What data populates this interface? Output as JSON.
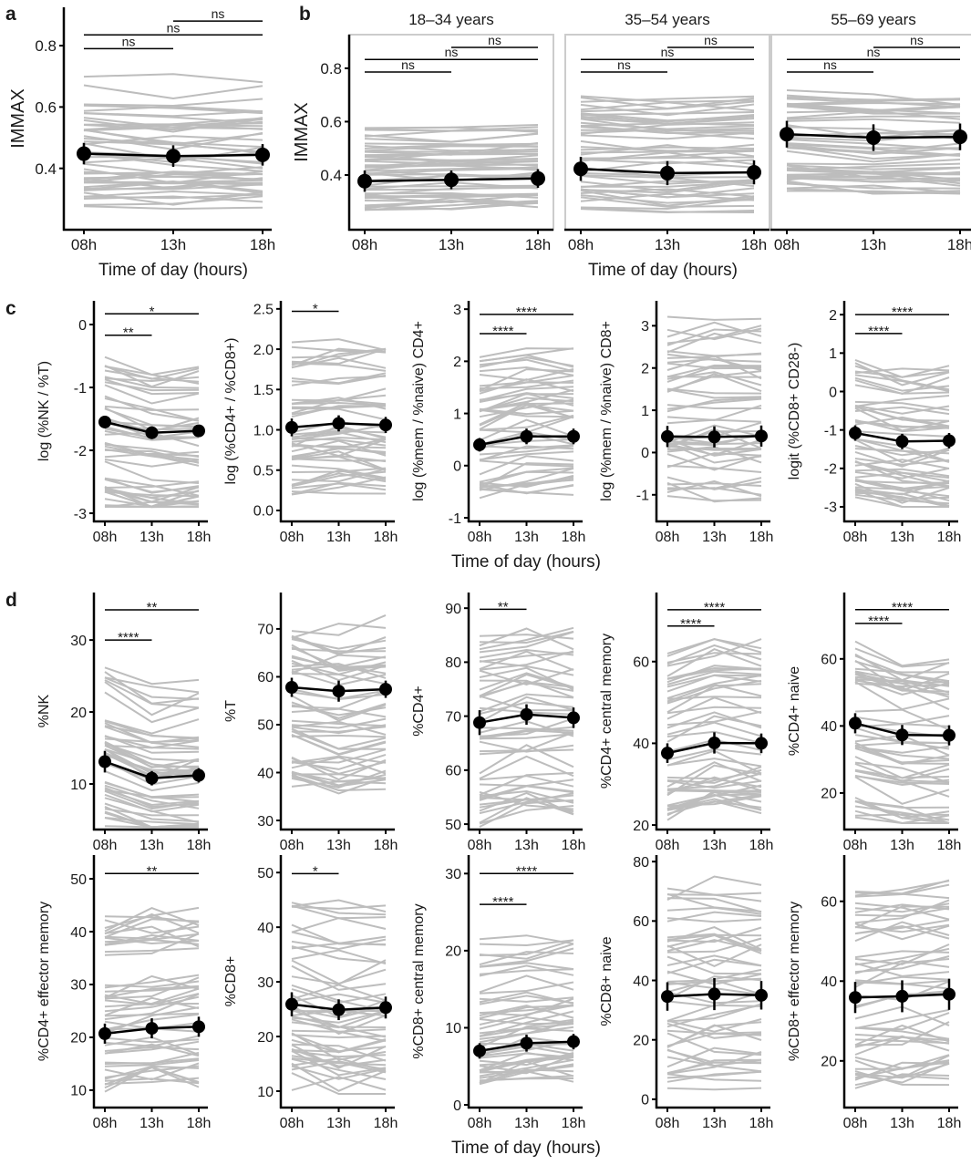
{
  "panel_letters": {
    "a": "a",
    "b": "b",
    "c": "c",
    "d": "d"
  },
  "xaxis_titles": {
    "a": "Time of day (hours)",
    "b": "Time of day (hours)",
    "c": "Time of day (hours)",
    "d": "Time of day (hours)"
  },
  "colors": {
    "mean": "#000000",
    "individual": "#bdbdbd",
    "facet_border": "#cccccc"
  },
  "chart_data": [
    {
      "id": "a",
      "type": "line",
      "ylabel": "IMMAX",
      "xticks": [
        "08h",
        "13h",
        "18h"
      ],
      "ylim": [
        0.2,
        0.925
      ],
      "yticks": [
        {
          "value": 0.4,
          "label": "0.4"
        },
        {
          "value": 0.6,
          "label": "0.6"
        },
        {
          "value": 0.8,
          "label": "0.8"
        }
      ],
      "mean": [
        0.448,
        0.44,
        0.444
      ],
      "err": [
        0.035,
        0.035,
        0.035
      ],
      "individual_range": [
        0.25,
        0.74
      ],
      "significance": [
        {
          "from": 0,
          "to": 1,
          "label": "ns",
          "y": 0.79
        },
        {
          "from": 0,
          "to": 2,
          "label": "ns",
          "y": 0.835
        },
        {
          "from": 1,
          "to": 2,
          "label": "ns",
          "y": 0.88
        }
      ]
    },
    {
      "id": "b1",
      "type": "line",
      "facet_title": "18–34 years",
      "ylabel": "IMMAX",
      "xticks": [
        "08h",
        "13h",
        "18h"
      ],
      "ylim": [
        0.195,
        0.926
      ],
      "yticks": [
        {
          "value": 0.4,
          "label": "0.4"
        },
        {
          "value": 0.6,
          "label": "0.6"
        },
        {
          "value": 0.8,
          "label": "0.8"
        }
      ],
      "mean": [
        0.377,
        0.382,
        0.387
      ],
      "err": [
        0.04,
        0.035,
        0.035
      ],
      "individual_range": [
        0.25,
        0.59
      ],
      "significance": [
        {
          "from": 0,
          "to": 1,
          "label": "ns",
          "y": 0.786
        },
        {
          "from": 0,
          "to": 2,
          "label": "ns",
          "y": 0.833
        },
        {
          "from": 1,
          "to": 2,
          "label": "ns",
          "y": 0.878
        }
      ]
    },
    {
      "id": "b2",
      "type": "line",
      "facet_title": "35–54 years",
      "xticks": [
        "08h",
        "13h",
        "18h"
      ],
      "ylim": [
        0.195,
        0.926
      ],
      "yticks": [],
      "mean": [
        0.423,
        0.407,
        0.41
      ],
      "err": [
        0.045,
        0.045,
        0.045
      ],
      "individual_range": [
        0.26,
        0.74
      ],
      "significance": [
        {
          "from": 0,
          "to": 1,
          "label": "ns",
          "y": 0.786
        },
        {
          "from": 0,
          "to": 2,
          "label": "ns",
          "y": 0.833
        },
        {
          "from": 1,
          "to": 2,
          "label": "ns",
          "y": 0.878
        }
      ]
    },
    {
      "id": "b3",
      "type": "line",
      "facet_title": "55–69 years",
      "xticks": [
        "08h",
        "13h",
        "18h"
      ],
      "ylim": [
        0.195,
        0.926
      ],
      "yticks": [],
      "mean": [
        0.553,
        0.54,
        0.543
      ],
      "err": [
        0.05,
        0.05,
        0.05
      ],
      "individual_range": [
        0.33,
        0.72
      ],
      "significance": [
        {
          "from": 0,
          "to": 1,
          "label": "ns",
          "y": 0.786
        },
        {
          "from": 0,
          "to": 2,
          "label": "ns",
          "y": 0.833
        },
        {
          "from": 1,
          "to": 2,
          "label": "ns",
          "y": 0.878
        }
      ]
    },
    {
      "id": "c1",
      "type": "line",
      "ylabel": "log (%NK / %T)",
      "xticks": [
        "08h",
        "13h",
        "18h"
      ],
      "ylim": [
        -3.13,
        0.377
      ],
      "yticks": [
        {
          "value": -3,
          "label": "-3"
        },
        {
          "value": -2,
          "label": "-2"
        },
        {
          "value": -1,
          "label": "-1"
        },
        {
          "value": 0,
          "label": "0"
        }
      ],
      "mean": [
        -1.55,
        -1.72,
        -1.69
      ],
      "err": [
        0.1,
        0.1,
        0.09
      ],
      "individual_range": [
        -2.9,
        -0.45
      ],
      "significance": [
        {
          "from": 0,
          "to": 1,
          "label": "**",
          "y": -0.17
        },
        {
          "from": 0,
          "to": 2,
          "label": "*",
          "y": 0.17
        }
      ]
    },
    {
      "id": "c2",
      "type": "line",
      "ylabel": "log (%CD4+ / %CD8+)",
      "xticks": [
        "08h",
        "13h",
        "18h"
      ],
      "ylim": [
        -0.136,
        2.6
      ],
      "yticks": [
        {
          "value": 0,
          "label": "0.0"
        },
        {
          "value": 0.5,
          "label": "0.5"
        },
        {
          "value": 1,
          "label": "1.0"
        },
        {
          "value": 1.5,
          "label": "1.5"
        },
        {
          "value": 2,
          "label": "2.0"
        },
        {
          "value": 2.5,
          "label": "2.5"
        }
      ],
      "mean": [
        1.03,
        1.08,
        1.06
      ],
      "err": [
        0.11,
        0.1,
        0.1
      ],
      "individual_range": [
        0.08,
        2.15
      ],
      "significance": [
        {
          "from": 0,
          "to": 1,
          "label": "*",
          "y": 2.47
        }
      ]
    },
    {
      "id": "c3",
      "type": "line",
      "ylabel": "log (%mem / %naive) CD4+",
      "xticks": [
        "08h",
        "13h",
        "18h"
      ],
      "ylim": [
        -1.07,
        3.16
      ],
      "yticks": [
        {
          "value": -1,
          "label": "-1"
        },
        {
          "value": 0,
          "label": "0"
        },
        {
          "value": 1,
          "label": "1"
        },
        {
          "value": 2,
          "label": "2"
        },
        {
          "value": 3,
          "label": "3"
        }
      ],
      "mean": [
        0.4,
        0.56,
        0.56
      ],
      "err": [
        0.13,
        0.15,
        0.15
      ],
      "individual_range": [
        -0.75,
        2.25
      ],
      "significance": [
        {
          "from": 0,
          "to": 1,
          "label": "****",
          "y": 2.53
        },
        {
          "from": 0,
          "to": 2,
          "label": "****",
          "y": 2.9
        }
      ]
    },
    {
      "id": "c4",
      "type": "line",
      "ylabel": "log (%mem / %naive) CD8+",
      "xticks": [
        "08h",
        "13h",
        "18h"
      ],
      "ylim": [
        -1.63,
        3.59
      ],
      "yticks": [
        {
          "value": -1,
          "label": "-1"
        },
        {
          "value": 0,
          "label": "0"
        },
        {
          "value": 1,
          "label": "1"
        },
        {
          "value": 2,
          "label": "2"
        },
        {
          "value": 3,
          "label": "3"
        }
      ],
      "mean": [
        0.38,
        0.37,
        0.39
      ],
      "err": [
        0.25,
        0.25,
        0.25
      ],
      "individual_range": [
        -1.45,
        3.3
      ],
      "significance": []
    },
    {
      "id": "c5",
      "type": "line",
      "ylabel": "logit (%CD8+ CD28-)",
      "xticks": [
        "08h",
        "13h",
        "18h"
      ],
      "ylim": [
        -3.38,
        2.36
      ],
      "yticks": [
        {
          "value": -3,
          "label": "-3"
        },
        {
          "value": -2,
          "label": "-2"
        },
        {
          "value": -1,
          "label": "-1"
        },
        {
          "value": 0,
          "label": "0"
        },
        {
          "value": 1,
          "label": "1"
        },
        {
          "value": 2,
          "label": "2"
        }
      ],
      "mean": [
        -1.08,
        -1.3,
        -1.28
      ],
      "err": [
        0.2,
        0.2,
        0.2
      ],
      "individual_range": [
        -3.0,
        1.1
      ],
      "significance": [
        {
          "from": 0,
          "to": 1,
          "label": "****",
          "y": 1.51
        },
        {
          "from": 0,
          "to": 2,
          "label": "****",
          "y": 2.0
        }
      ]
    },
    {
      "id": "d1",
      "type": "line",
      "ylabel": "%NK",
      "xticks": [
        "08h",
        "13h",
        "18h"
      ],
      "ylim": [
        3.67,
        36.6
      ],
      "yticks": [
        {
          "value": 10,
          "label": "10"
        },
        {
          "value": 20,
          "label": "20"
        },
        {
          "value": 30,
          "label": "30"
        }
      ],
      "mean": [
        13.1,
        10.8,
        11.2
      ],
      "err": [
        1.5,
        1.0,
        1.0
      ],
      "individual_range": [
        4.0,
        27.3
      ],
      "significance": [
        {
          "from": 0,
          "to": 1,
          "label": "****",
          "y": 30
        },
        {
          "from": 0,
          "to": 2,
          "label": "**",
          "y": 34.2
        }
      ]
    },
    {
      "id": "d2",
      "type": "line",
      "ylabel": "%T",
      "xticks": [
        "08h",
        "13h",
        "18h"
      ],
      "ylim": [
        28.1,
        77.6
      ],
      "yticks": [
        {
          "value": 30,
          "label": "30"
        },
        {
          "value": 40,
          "label": "40"
        },
        {
          "value": 50,
          "label": "50"
        },
        {
          "value": 60,
          "label": "60"
        },
        {
          "value": 70,
          "label": "70"
        }
      ],
      "mean": [
        57.8,
        57.0,
        57.4
      ],
      "err": [
        2.0,
        2.2,
        1.8
      ],
      "individual_range": [
        34,
        74
      ],
      "significance": []
    },
    {
      "id": "d3",
      "type": "line",
      "ylabel": "%CD4+",
      "xticks": [
        "08h",
        "13h",
        "18h"
      ],
      "ylim": [
        49.0,
        92.9
      ],
      "yticks": [
        {
          "value": 50,
          "label": "50"
        },
        {
          "value": 60,
          "label": "60"
        },
        {
          "value": 70,
          "label": "70"
        },
        {
          "value": 80,
          "label": "80"
        },
        {
          "value": 90,
          "label": "90"
        }
      ],
      "mean": [
        68.8,
        70.3,
        69.7
      ],
      "err": [
        2.3,
        1.9,
        1.9
      ],
      "individual_range": [
        49.5,
        86.5
      ],
      "significance": [
        {
          "from": 0,
          "to": 1,
          "label": "**",
          "y": 89.8
        }
      ]
    },
    {
      "id": "d4",
      "type": "line",
      "ylabel": "%CD4+ central memory",
      "xticks": [
        "08h",
        "13h",
        "18h"
      ],
      "ylim": [
        18.9,
        76.9
      ],
      "yticks": [
        {
          "value": 20,
          "label": "20"
        },
        {
          "value": 40,
          "label": "40"
        },
        {
          "value": 60,
          "label": "60"
        }
      ],
      "mean": [
        37.6,
        40.1,
        40.0
      ],
      "err": [
        2.4,
        2.6,
        2.4
      ],
      "individual_range": [
        19,
        65.5
      ],
      "significance": [
        {
          "from": 0,
          "to": 1,
          "label": "****",
          "y": 68.7
        },
        {
          "from": 0,
          "to": 2,
          "label": "****",
          "y": 72.7
        }
      ]
    },
    {
      "id": "d5",
      "type": "line",
      "ylabel": "%CD4+ naive",
      "xticks": [
        "08h",
        "13h",
        "18h"
      ],
      "ylim": [
        9.1,
        79.8
      ],
      "yticks": [
        {
          "value": 20,
          "label": "20"
        },
        {
          "value": 40,
          "label": "40"
        },
        {
          "value": 60,
          "label": "60"
        }
      ],
      "mean": [
        40.8,
        37.3,
        37.2
      ],
      "err": [
        3.0,
        3.0,
        3.0
      ],
      "individual_range": [
        11,
        68
      ],
      "significance": [
        {
          "from": 0,
          "to": 1,
          "label": "****",
          "y": 70.6
        },
        {
          "from": 0,
          "to": 2,
          "label": "****",
          "y": 74.7
        }
      ]
    },
    {
      "id": "d6",
      "type": "line",
      "ylabel": "%CD4+ effector memory",
      "xticks": [
        "08h",
        "13h",
        "18h"
      ],
      "ylim": [
        6.7,
        54.5
      ],
      "yticks": [
        {
          "value": 10,
          "label": "10"
        },
        {
          "value": 20,
          "label": "20"
        },
        {
          "value": 30,
          "label": "30"
        },
        {
          "value": 40,
          "label": "40"
        },
        {
          "value": 50,
          "label": "50"
        }
      ],
      "mean": [
        20.7,
        21.7,
        22.0
      ],
      "err": [
        1.9,
        1.9,
        1.9
      ],
      "individual_range": [
        9.5,
        44.5
      ],
      "significance": [
        {
          "from": 0,
          "to": 2,
          "label": "**",
          "y": 51
        }
      ]
    },
    {
      "id": "d7",
      "type": "line",
      "ylabel": "%CD8+",
      "xticks": [
        "08h",
        "13h",
        "18h"
      ],
      "ylim": [
        7.0,
        53.2
      ],
      "yticks": [
        {
          "value": 10,
          "label": "10"
        },
        {
          "value": 20,
          "label": "20"
        },
        {
          "value": 30,
          "label": "30"
        },
        {
          "value": 40,
          "label": "40"
        },
        {
          "value": 50,
          "label": "50"
        }
      ],
      "mean": [
        25.9,
        24.9,
        25.3
      ],
      "err": [
        2.2,
        1.9,
        2.0
      ],
      "individual_range": [
        9.5,
        47
      ],
      "significance": [
        {
          "from": 0,
          "to": 1,
          "label": "*",
          "y": 49.8
        }
      ]
    },
    {
      "id": "d8",
      "type": "line",
      "ylabel": "%CD8+ central memory",
      "xticks": [
        "08h",
        "13h",
        "18h"
      ],
      "ylim": [
        -0.35,
        32.4
      ],
      "yticks": [
        {
          "value": 0,
          "label": "0"
        },
        {
          "value": 10,
          "label": "10"
        },
        {
          "value": 20,
          "label": "20"
        },
        {
          "value": 30,
          "label": "30"
        }
      ],
      "mean": [
        7.0,
        8.0,
        8.2
      ],
      "err": [
        1.0,
        1.1,
        1.0
      ],
      "individual_range": [
        1.5,
        23
      ],
      "significance": [
        {
          "from": 0,
          "to": 1,
          "label": "****",
          "y": 26
        },
        {
          "from": 0,
          "to": 2,
          "label": "****",
          "y": 30
        }
      ]
    },
    {
      "id": "d9",
      "type": "line",
      "ylabel": "%CD8+ naive",
      "xticks": [
        "08h",
        "13h",
        "18h"
      ],
      "ylim": [
        -2.8,
        82.2
      ],
      "yticks": [
        {
          "value": 0,
          "label": "0"
        },
        {
          "value": 20,
          "label": "20"
        },
        {
          "value": 40,
          "label": "40"
        },
        {
          "value": 60,
          "label": "60"
        },
        {
          "value": 80,
          "label": "80"
        }
      ],
      "mean": [
        34.6,
        35.4,
        35.0
      ],
      "err": [
        4.8,
        5.4,
        4.8
      ],
      "individual_range": [
        2,
        75
      ],
      "significance": []
    },
    {
      "id": "d10",
      "type": "line",
      "ylabel": "%CD8+ effector memory",
      "xticks": [
        "08h",
        "13h",
        "18h"
      ],
      "ylim": [
        8.3,
        71.6
      ],
      "yticks": [
        {
          "value": 20,
          "label": "20"
        },
        {
          "value": 40,
          "label": "40"
        },
        {
          "value": 60,
          "label": "60"
        }
      ],
      "mean": [
        35.9,
        36.2,
        36.7
      ],
      "err": [
        3.9,
        4.0,
        3.9
      ],
      "individual_range": [
        12,
        66
      ],
      "significance": []
    }
  ]
}
